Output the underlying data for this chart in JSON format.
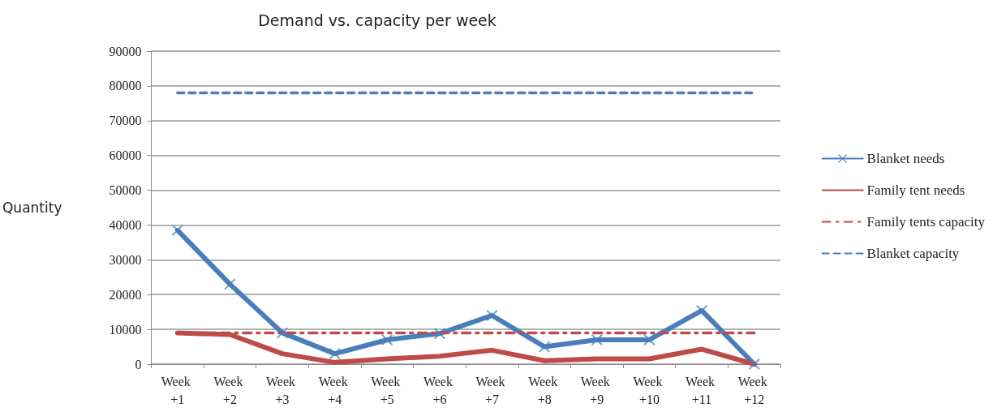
{
  "chart_data": {
    "type": "line",
    "title": "Demand vs. capacity per week",
    "ylabel": "Quantity",
    "categories": [
      "Week +1",
      "Week +2",
      "Week +3",
      "Week +4",
      "Week +5",
      "Week +6",
      "Week +7",
      "Week +8",
      "Week +9",
      "Week +10",
      "Week +11",
      "Week +12"
    ],
    "series": [
      {
        "name": "Blanket needs",
        "color": "#4a7ebb",
        "marker": "cross",
        "line_style": "solid",
        "values": [
          38500,
          23000,
          9000,
          3000,
          7000,
          8800,
          14000,
          5000,
          7000,
          7000,
          15400,
          0
        ]
      },
      {
        "name": "Family tent needs",
        "color": "#be4b48",
        "marker": "none",
        "line_style": "solid",
        "values": [
          9000,
          8500,
          3000,
          500,
          1500,
          2300,
          4000,
          1000,
          1500,
          1500,
          4300,
          0
        ]
      },
      {
        "name": "Family tents capacity",
        "color": "#be4b48",
        "marker": "none",
        "line_style": "dashdot",
        "values": [
          9000,
          9000,
          9000,
          9000,
          9000,
          9000,
          9000,
          9000,
          9000,
          9000,
          9000,
          9000
        ]
      },
      {
        "name": "Blanket capacity",
        "color": "#4a7ebb",
        "marker": "none",
        "line_style": "dashed",
        "values": [
          78000,
          78000,
          78000,
          78000,
          78000,
          78000,
          78000,
          78000,
          78000,
          78000,
          78000,
          78000
        ]
      }
    ],
    "ylim": [
      0,
      90000
    ],
    "yticks": [
      0,
      10000,
      20000,
      30000,
      40000,
      50000,
      60000,
      70000,
      80000,
      90000
    ],
    "grid": "y",
    "legend": "right"
  }
}
